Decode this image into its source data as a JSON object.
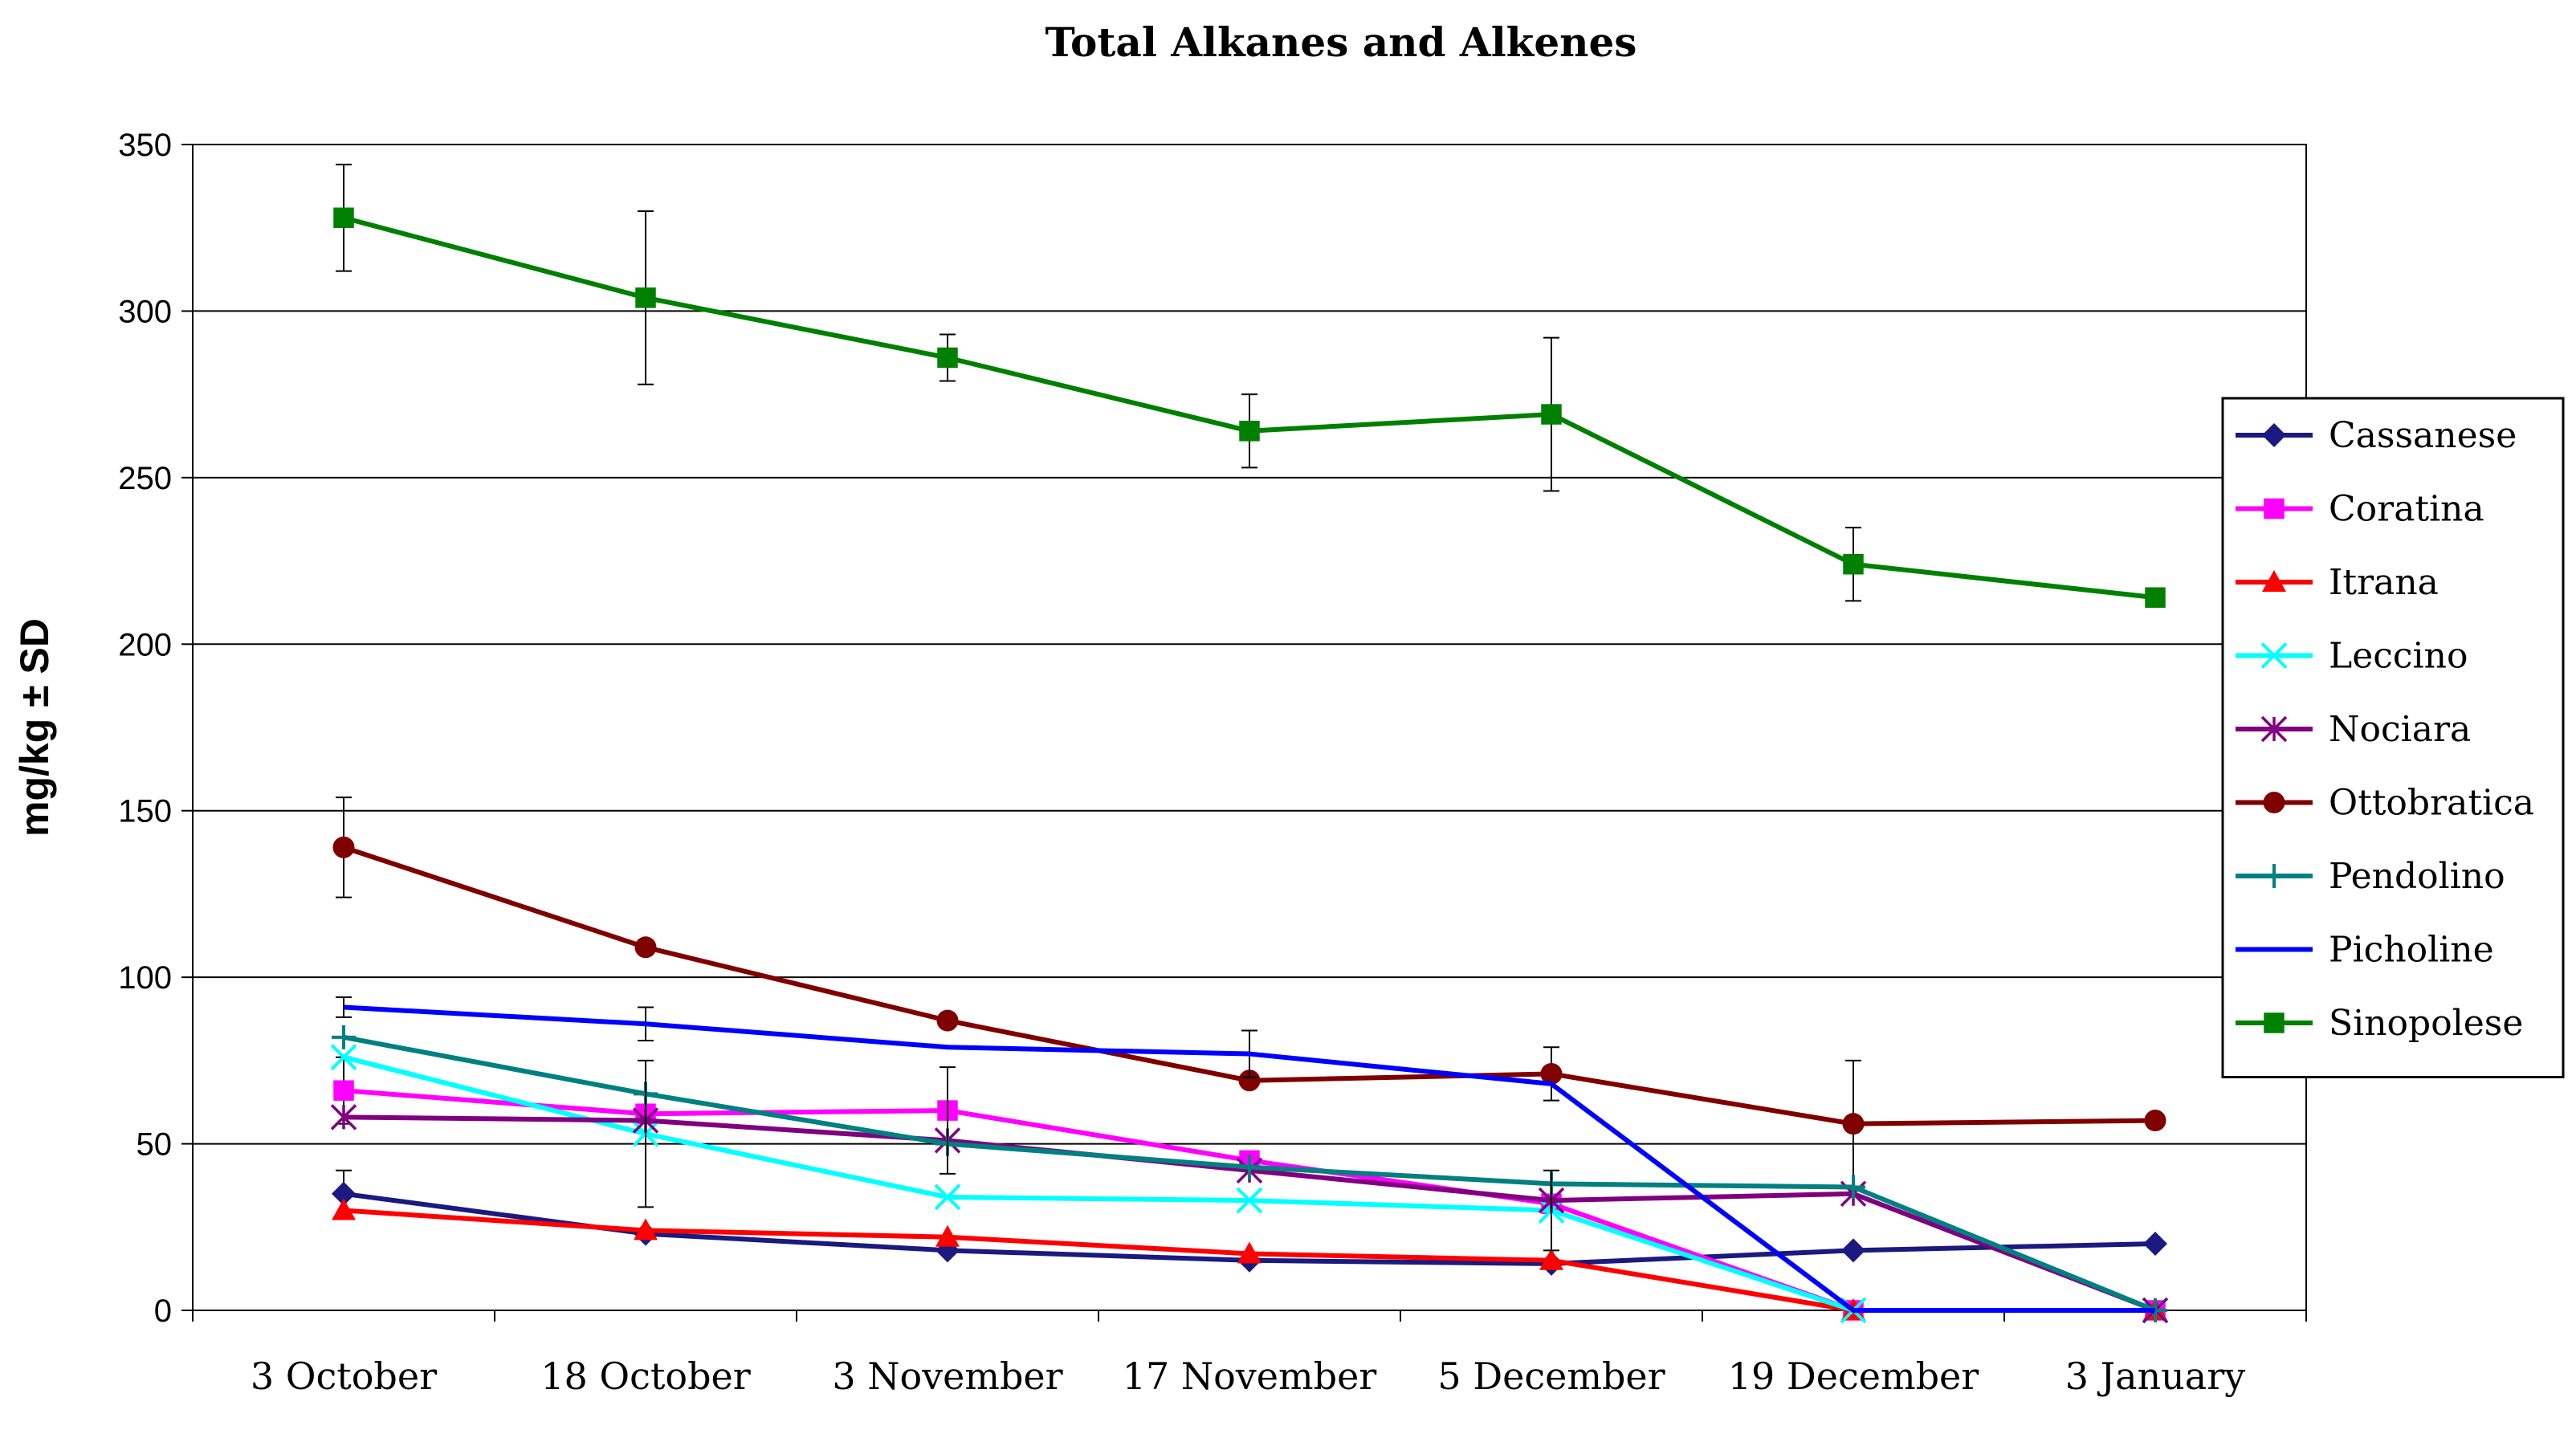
{
  "chart_data": {
    "type": "line",
    "title": "Total Alkanes and Alkenes",
    "xlabel": "",
    "ylabel": "mg/kg ± SD",
    "ylim": [
      0,
      350
    ],
    "yticks": [
      0,
      50,
      100,
      150,
      200,
      250,
      300,
      350
    ],
    "grid": "horizontal",
    "legend": "right",
    "categories": [
      "3 October",
      "18 October",
      "3 November",
      "17 November",
      "5 December",
      "19 December",
      "3 January"
    ],
    "series": [
      {
        "name": "Cassanese",
        "color": "#1a1a80",
        "marker": "diamond",
        "values": [
          35,
          23,
          18,
          15,
          14,
          18,
          20
        ],
        "err": [
          7,
          0,
          0,
          0,
          0,
          0,
          0
        ]
      },
      {
        "name": "Coratina",
        "color": "#ff00ff",
        "marker": "square",
        "values": [
          66,
          59,
          60,
          45,
          32,
          0,
          0
        ],
        "err": [
          10,
          0,
          0,
          0,
          0,
          0,
          0
        ]
      },
      {
        "name": "Itrana",
        "color": "#ff0000",
        "marker": "triangle",
        "values": [
          30,
          24,
          22,
          17,
          15,
          0,
          0
        ],
        "err": [
          0,
          0,
          0,
          0,
          0,
          0,
          0
        ]
      },
      {
        "name": "Leccino",
        "color": "#00ffff",
        "marker": "x",
        "values": [
          76,
          53,
          34,
          33,
          30,
          0,
          0
        ],
        "err": [
          0,
          0,
          0,
          0,
          0,
          0,
          0
        ]
      },
      {
        "name": "Nociara",
        "color": "#800080",
        "marker": "star",
        "values": [
          58,
          57,
          51,
          42,
          33,
          35,
          0
        ],
        "err": [
          0,
          0,
          0,
          0,
          0,
          0,
          0
        ]
      },
      {
        "name": "Ottobratica",
        "color": "#800000",
        "marker": "circle",
        "values": [
          139,
          109,
          87,
          69,
          71,
          56,
          57
        ],
        "err": [
          15,
          0,
          0,
          0,
          8,
          19,
          0
        ]
      },
      {
        "name": "Pendolino",
        "color": "#008080",
        "marker": "plus",
        "values": [
          82,
          65,
          50,
          43,
          38,
          37,
          0
        ],
        "err": [
          0,
          0,
          0,
          0,
          0,
          0,
          0
        ]
      },
      {
        "name": "Picholine",
        "color": "#0000ff",
        "marker": "none",
        "values": [
          91,
          86,
          79,
          77,
          68,
          0,
          0
        ],
        "err": [
          3,
          5,
          0,
          7,
          0,
          0,
          0
        ]
      },
      {
        "name": "Sinopolese",
        "color": "#008000",
        "marker": "square",
        "values": [
          328,
          304,
          286,
          264,
          269,
          224,
          214
        ],
        "err": [
          16,
          26,
          7,
          11,
          23,
          11,
          0
        ]
      }
    ],
    "extra_error_bars": [
      {
        "category_index": 1,
        "center": 53,
        "err": 22
      },
      {
        "category_index": 2,
        "center": 57,
        "err": 16
      },
      {
        "category_index": 4,
        "center": 30,
        "err": 12
      }
    ]
  }
}
